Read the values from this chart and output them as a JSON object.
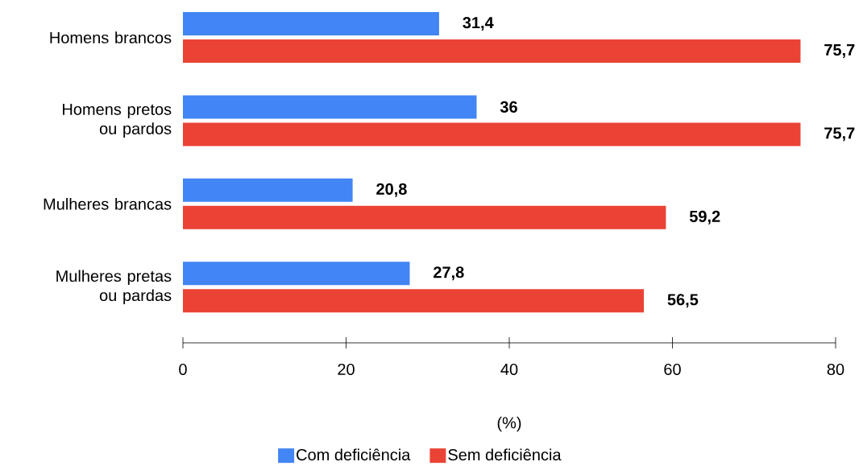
{
  "chart_data": {
    "type": "bar",
    "orientation": "horizontal",
    "categories": [
      "Homens brancos",
      "Homens pretos ou pardos",
      "Mulheres brancas",
      "Mulheres pretas ou pardas"
    ],
    "series": [
      {
        "name": "Com deficiência",
        "color": "#4285f4",
        "values": [
          31.4,
          36,
          20.8,
          27.8
        ],
        "value_labels": [
          "31,4",
          "36",
          "20,8",
          "27,8"
        ]
      },
      {
        "name": "Sem deficiência",
        "color": "#ea4335",
        "values": [
          75.7,
          75.7,
          59.2,
          56.5
        ],
        "value_labels": [
          "75,7",
          "75,7",
          "59,2",
          "56,5"
        ]
      }
    ],
    "xlabel": "(%)",
    "xlim": [
      0,
      80
    ],
    "xticks": [
      0,
      20,
      40,
      60,
      80
    ],
    "legend": "bottom"
  }
}
